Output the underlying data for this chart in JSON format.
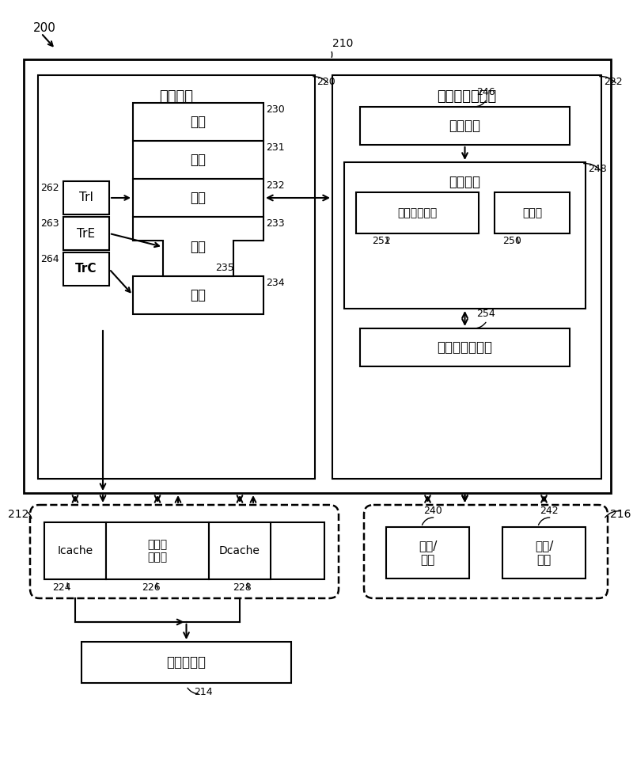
{
  "fig_label": "200",
  "outer_box_label": "210",
  "pipeline_box_label": "220",
  "pipeline_title": "指令管线",
  "nbs_box_label": "222",
  "nbs_title": "非分支预测逻辑",
  "fetch_label": "提取",
  "fetch_num": "230",
  "decode_label": "解码",
  "decode_num": "231",
  "issue_label": "发出",
  "issue_num": "232",
  "exec_label": "执行",
  "exec_num": "233",
  "complete_label": "完成",
  "complete_num": "234",
  "small_box_num": "235",
  "TrI_label": "TrI",
  "TrI_num": "262",
  "TrE_label": "TrE",
  "TrE_num": "263",
  "TrC_label": "TrC",
  "TrC_num": "264",
  "detect_label": "检测逻辑",
  "detect_num": "246",
  "monitor_label": "监视逻辑",
  "monitor_num": "248",
  "hist_label": "有条件历史表",
  "hist_num": "252",
  "filter_label": "过滤器",
  "filter_num": "250",
  "predict_label": "预测与固定电路",
  "predict_num": "254",
  "memory_box_label": "212",
  "icache_label": "Icache",
  "memctrl_label": "存储器\n控制器",
  "dcache_label": "Dcache",
  "icache_num": "224",
  "memctrl_num": "226",
  "dcache_num": "228",
  "sysmem_label": "系统存储器",
  "sysmem_num": "214",
  "io_box_label": "216",
  "io1_label": "输入/\n输出",
  "io1_num": "240",
  "io2_label": "输入/\n输出",
  "io2_num": "242"
}
